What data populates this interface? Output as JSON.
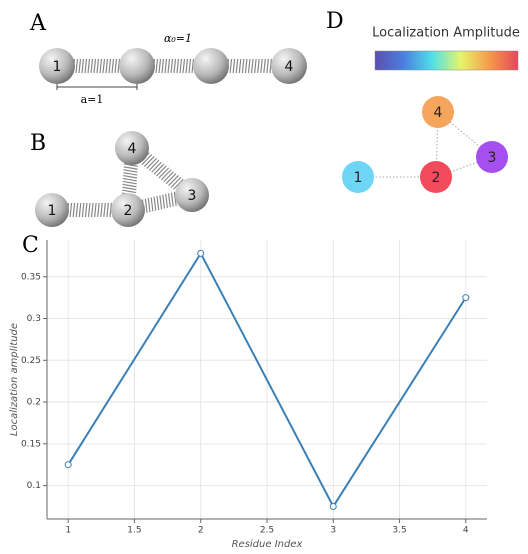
{
  "panels": {
    "a": "A",
    "b": "B",
    "c": "C",
    "d": "D"
  },
  "panel_a": {
    "first": "1",
    "last": "4",
    "spacing": "a=1",
    "coupling": "α₀=1"
  },
  "panel_b": {
    "nodes": [
      "1",
      "2",
      "3",
      "4"
    ]
  },
  "panel_d": {
    "colorbar_label": "Localization Amplitude",
    "nodes": [
      {
        "label": "1",
        "color": "#6ed6f4"
      },
      {
        "label": "2",
        "color": "#f24b5b"
      },
      {
        "label": "3",
        "color": "#a64ff0"
      },
      {
        "label": "4",
        "color": "#f6a55c"
      }
    ]
  },
  "chart_data": {
    "type": "line",
    "x_label": "Residue Index",
    "y_label": "Localization amplitude",
    "x": [
      1,
      2,
      3,
      4
    ],
    "values": [
      0.125,
      0.378,
      0.075,
      0.325
    ],
    "color": "#3a80b6",
    "xlim": [
      0.84,
      4.16
    ],
    "ylim": [
      0.06,
      0.394
    ],
    "xticks": [
      1,
      1.5,
      2,
      2.5,
      3,
      3.5,
      4
    ],
    "yticks": [
      0.1,
      0.15,
      0.2,
      0.25,
      0.3,
      0.35
    ],
    "grid": true
  }
}
